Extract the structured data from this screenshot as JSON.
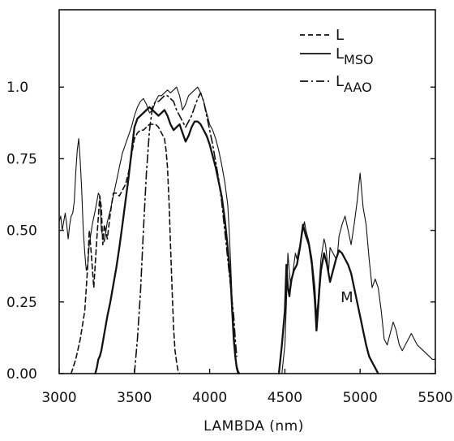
{
  "chart_data": {
    "type": "line",
    "title": "",
    "xlabel": "LAMBDA (nm)",
    "ylabel": "",
    "xlim": [
      3000,
      5500
    ],
    "ylim": [
      0,
      1.27
    ],
    "grid": false,
    "legend_placement": "top-right",
    "x_ticks": [
      3000,
      3500,
      4000,
      4500,
      5000,
      5500
    ],
    "x_tick_labels": [
      "3000",
      "3500",
      "4000",
      "4500",
      "5000",
      "5500"
    ],
    "y_ticks": [
      0,
      0.25,
      0.5,
      0.75,
      1.0
    ],
    "y_tick_labels": [
      "0.00",
      "0.25",
      "0.50",
      "0.75",
      "1.0"
    ],
    "legend": [
      {
        "main": "L",
        "sub": "",
        "style": "dashed"
      },
      {
        "main": "L",
        "sub": "MSO",
        "style": "solid"
      },
      {
        "main": "L",
        "sub": "AAO",
        "style": "dashdot"
      }
    ],
    "annotations": [
      {
        "text": "M",
        "x": 4870,
        "y": 0.25
      }
    ],
    "series": [
      {
        "name": "L",
        "style": "dashed",
        "stroke_width": 1.6,
        "x": [
          3080,
          3110,
          3140,
          3170,
          3190,
          3200,
          3210,
          3230,
          3250,
          3270,
          3280,
          3290,
          3300,
          3320,
          3340,
          3360,
          3380,
          3400,
          3420,
          3440,
          3460,
          3480,
          3500,
          3520,
          3540,
          3560,
          3580,
          3600,
          3620,
          3640,
          3660,
          3680,
          3700,
          3710,
          3720,
          3730,
          3740,
          3750,
          3760,
          3770,
          3780,
          3790,
          3800
        ],
        "y": [
          0.0,
          0.05,
          0.12,
          0.22,
          0.38,
          0.5,
          0.44,
          0.3,
          0.47,
          0.62,
          0.58,
          0.45,
          0.52,
          0.47,
          0.56,
          0.63,
          0.63,
          0.62,
          0.64,
          0.66,
          0.7,
          0.76,
          0.82,
          0.84,
          0.85,
          0.85,
          0.86,
          0.87,
          0.87,
          0.87,
          0.86,
          0.84,
          0.82,
          0.78,
          0.72,
          0.6,
          0.45,
          0.3,
          0.16,
          0.08,
          0.04,
          0.01,
          0.0
        ]
      },
      {
        "name": "L MSO (thin)",
        "style": "solid",
        "stroke_width": 1.1,
        "x": [
          3000,
          3010,
          3020,
          3030,
          3040,
          3050,
          3060,
          3070,
          3080,
          3090,
          3100,
          3110,
          3120,
          3130,
          3140,
          3150,
          3160,
          3170,
          3180,
          3190,
          3200,
          3220,
          3240,
          3260,
          3270,
          3280,
          3300,
          3320,
          3340,
          3360,
          3380,
          3400,
          3420,
          3440,
          3460,
          3480,
          3500,
          3520,
          3540,
          3560,
          3580,
          3600,
          3620,
          3640,
          3660,
          3680,
          3700,
          3720,
          3740,
          3760,
          3780,
          3800,
          3820,
          3840,
          3860,
          3880,
          3900,
          3920,
          3940,
          3960,
          3980,
          4000,
          4020,
          4040,
          4060,
          4080,
          4100,
          4120,
          4130,
          4140,
          4150,
          4160,
          4170,
          4180,
          4190,
          4200
        ],
        "y": [
          0.53,
          0.55,
          0.5,
          0.53,
          0.56,
          0.52,
          0.47,
          0.52,
          0.55,
          0.56,
          0.6,
          0.7,
          0.78,
          0.82,
          0.74,
          0.64,
          0.5,
          0.42,
          0.36,
          0.38,
          0.45,
          0.52,
          0.57,
          0.63,
          0.62,
          0.5,
          0.46,
          0.53,
          0.57,
          0.62,
          0.67,
          0.72,
          0.77,
          0.8,
          0.83,
          0.86,
          0.9,
          0.93,
          0.95,
          0.96,
          0.94,
          0.91,
          0.92,
          0.95,
          0.97,
          0.97,
          0.98,
          0.99,
          0.98,
          0.99,
          1.0,
          0.97,
          0.92,
          0.94,
          0.97,
          0.98,
          0.99,
          1.0,
          0.98,
          0.95,
          0.91,
          0.87,
          0.85,
          0.82,
          0.78,
          0.73,
          0.67,
          0.59,
          0.5,
          0.38,
          0.25,
          0.15,
          0.07,
          0.03,
          0.01,
          0.0
        ]
      },
      {
        "name": "L MSO (thick)",
        "style": "solid",
        "stroke_width": 2.3,
        "x": [
          3240,
          3250,
          3260,
          3270,
          3280,
          3300,
          3320,
          3340,
          3360,
          3380,
          3400,
          3420,
          3440,
          3460,
          3480,
          3500,
          3520,
          3540,
          3560,
          3580,
          3600,
          3620,
          3640,
          3660,
          3680,
          3700,
          3720,
          3740,
          3760,
          3780,
          3800,
          3820,
          3840,
          3860,
          3880,
          3900,
          3920,
          3940,
          3960,
          3980,
          4000,
          4020,
          4040,
          4060,
          4080,
          4100,
          4120,
          4140,
          4150,
          4160,
          4170,
          4180,
          4190
        ],
        "y": [
          0.0,
          0.02,
          0.05,
          0.06,
          0.08,
          0.14,
          0.2,
          0.25,
          0.31,
          0.37,
          0.44,
          0.52,
          0.6,
          0.68,
          0.77,
          0.86,
          0.89,
          0.9,
          0.91,
          0.92,
          0.93,
          0.92,
          0.91,
          0.9,
          0.91,
          0.92,
          0.9,
          0.87,
          0.85,
          0.86,
          0.87,
          0.84,
          0.81,
          0.83,
          0.86,
          0.88,
          0.88,
          0.87,
          0.85,
          0.83,
          0.8,
          0.76,
          0.72,
          0.67,
          0.62,
          0.54,
          0.44,
          0.32,
          0.22,
          0.12,
          0.06,
          0.02,
          0.0
        ]
      },
      {
        "name": "L AAO",
        "style": "dashdot",
        "stroke_width": 1.6,
        "x": [
          3500,
          3520,
          3540,
          3560,
          3580,
          3600,
          3620,
          3640,
          3660,
          3680,
          3700,
          3720,
          3740,
          3760,
          3780,
          3800,
          3820,
          3840,
          3860,
          3880,
          3900,
          3920,
          3940,
          3960,
          3980,
          4000,
          4020,
          4040,
          4060,
          4080,
          4100,
          4120,
          4140,
          4160,
          4170,
          4180
        ],
        "y": [
          0.0,
          0.12,
          0.28,
          0.5,
          0.7,
          0.85,
          0.93,
          0.95,
          0.95,
          0.96,
          0.97,
          0.97,
          0.96,
          0.95,
          0.92,
          0.9,
          0.88,
          0.86,
          0.88,
          0.9,
          0.93,
          0.96,
          0.98,
          0.95,
          0.9,
          0.85,
          0.8,
          0.74,
          0.68,
          0.6,
          0.5,
          0.4,
          0.3,
          0.2,
          0.12,
          0.06
        ]
      },
      {
        "name": "M (thin)",
        "style": "solid",
        "stroke_width": 1.1,
        "x": [
          4480,
          4500,
          4510,
          4520,
          4530,
          4540,
          4560,
          4570,
          4580,
          4600,
          4620,
          4630,
          4640,
          4660,
          4680,
          4700,
          4710,
          4720,
          4730,
          4740,
          4760,
          4770,
          4780,
          4790,
          4800,
          4820,
          4840,
          4850,
          4860,
          4880,
          4900,
          4920,
          4940,
          4960,
          4980,
          5000,
          5020,
          5040,
          5060,
          5080,
          5100,
          5120,
          5140,
          5160,
          5180,
          5200,
          5220,
          5240,
          5260,
          5280,
          5300,
          5320,
          5340,
          5360,
          5380,
          5400,
          5420,
          5440,
          5460,
          5480,
          5500
        ],
        "y": [
          0.0,
          0.1,
          0.25,
          0.42,
          0.35,
          0.3,
          0.38,
          0.42,
          0.4,
          0.45,
          0.5,
          0.53,
          0.5,
          0.46,
          0.4,
          0.3,
          0.2,
          0.25,
          0.33,
          0.4,
          0.47,
          0.45,
          0.4,
          0.35,
          0.44,
          0.42,
          0.4,
          0.42,
          0.48,
          0.52,
          0.55,
          0.5,
          0.45,
          0.52,
          0.6,
          0.7,
          0.58,
          0.52,
          0.4,
          0.3,
          0.33,
          0.3,
          0.22,
          0.12,
          0.1,
          0.14,
          0.18,
          0.15,
          0.1,
          0.08,
          0.1,
          0.12,
          0.14,
          0.12,
          0.1,
          0.09,
          0.08,
          0.07,
          0.06,
          0.05,
          0.05
        ]
      },
      {
        "name": "M (thick)",
        "style": "solid",
        "stroke_width": 2.3,
        "x": [
          4460,
          4480,
          4500,
          4510,
          4520,
          4530,
          4540,
          4560,
          4580,
          4600,
          4620,
          4640,
          4660,
          4680,
          4700,
          4710,
          4720,
          4730,
          4740,
          4760,
          4780,
          4800,
          4820,
          4840,
          4860,
          4880,
          4900,
          4920,
          4940,
          4960,
          4980,
          5000,
          5020,
          5040,
          5060,
          5080,
          5100,
          5120
        ],
        "y": [
          0.0,
          0.1,
          0.22,
          0.38,
          0.3,
          0.27,
          0.32,
          0.36,
          0.38,
          0.44,
          0.52,
          0.48,
          0.45,
          0.38,
          0.25,
          0.15,
          0.22,
          0.3,
          0.36,
          0.42,
          0.38,
          0.32,
          0.36,
          0.4,
          0.43,
          0.42,
          0.4,
          0.38,
          0.35,
          0.3,
          0.25,
          0.2,
          0.15,
          0.1,
          0.06,
          0.04,
          0.02,
          0.0
        ]
      }
    ]
  }
}
